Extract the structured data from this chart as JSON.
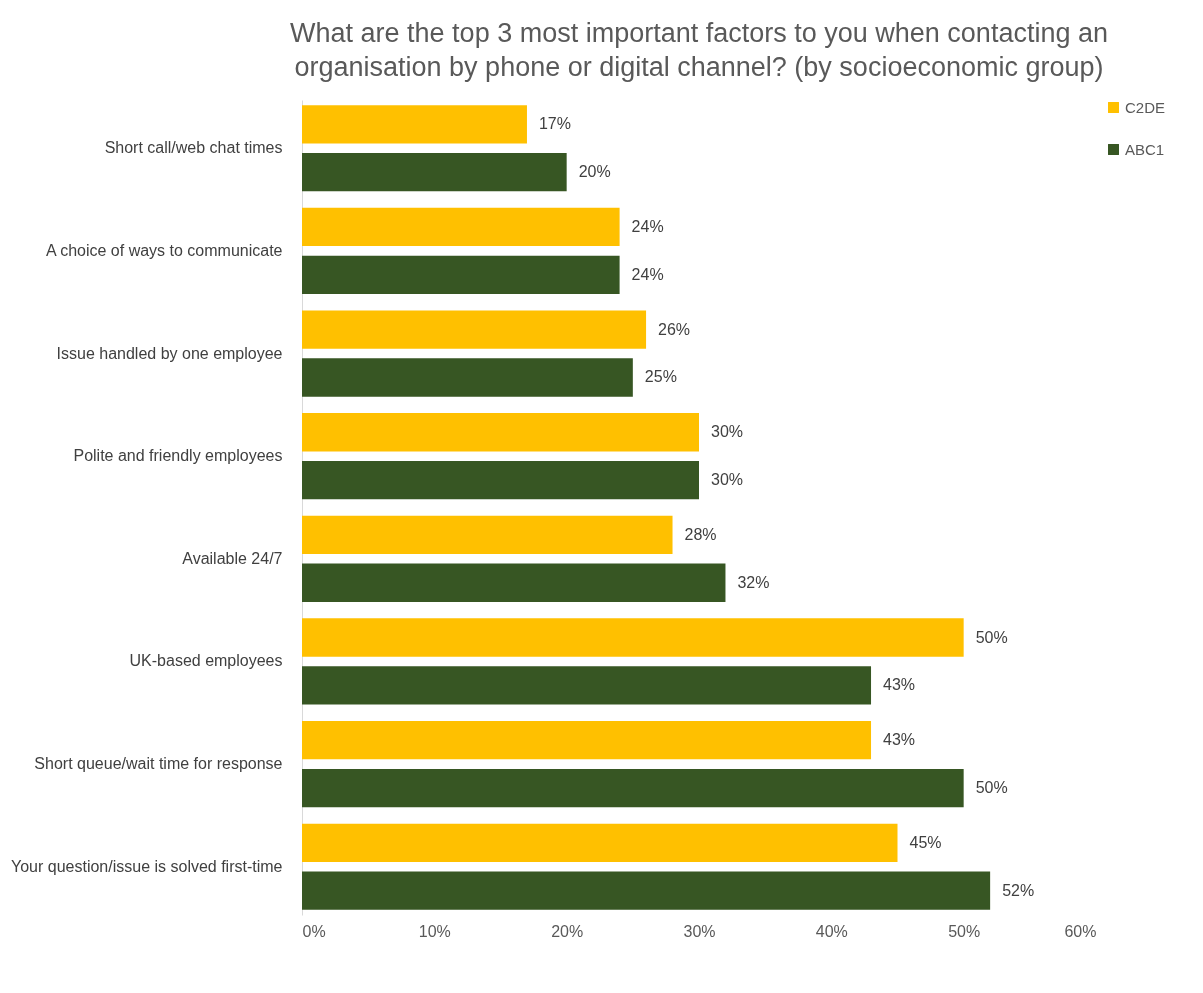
{
  "chart_data": {
    "type": "bar",
    "orientation": "horizontal",
    "title": "What are the top 3 most important factors to you when contacting an organisation by phone or digital channel? (by socioeconomic group)",
    "categories": [
      "Short call/web chat times",
      "A choice of ways to communicate",
      "Issue handled by one employee",
      "Polite and friendly employees",
      "Available 24/7",
      "UK-based employees",
      "Short queue/wait time for response",
      "Your question/issue is solved first-time"
    ],
    "series": [
      {
        "name": "C2DE",
        "color": "#ffc000",
        "values": [
          17,
          24,
          26,
          30,
          28,
          50,
          43,
          45
        ],
        "value_labels": [
          "17%",
          "24%",
          "26%",
          "30%",
          "28%",
          "50%",
          "43%",
          "45%"
        ]
      },
      {
        "name": "ABC1",
        "color": "#375623",
        "values": [
          20,
          24,
          25,
          30,
          32,
          43,
          50,
          52
        ],
        "value_labels": [
          "20%",
          "24%",
          "25%",
          "30%",
          "32%",
          "43%",
          "50%",
          "52%"
        ]
      }
    ],
    "xlim": [
      0,
      60
    ],
    "xticks": [
      {
        "value": 0,
        "label": "0%"
      },
      {
        "value": 10,
        "label": "10%"
      },
      {
        "value": 20,
        "label": "20%"
      },
      {
        "value": 30,
        "label": "30%"
      },
      {
        "value": 40,
        "label": "40%"
      },
      {
        "value": 50,
        "label": "50%"
      },
      {
        "value": 60,
        "label": "60%"
      }
    ],
    "grid": false,
    "legend": "right"
  }
}
